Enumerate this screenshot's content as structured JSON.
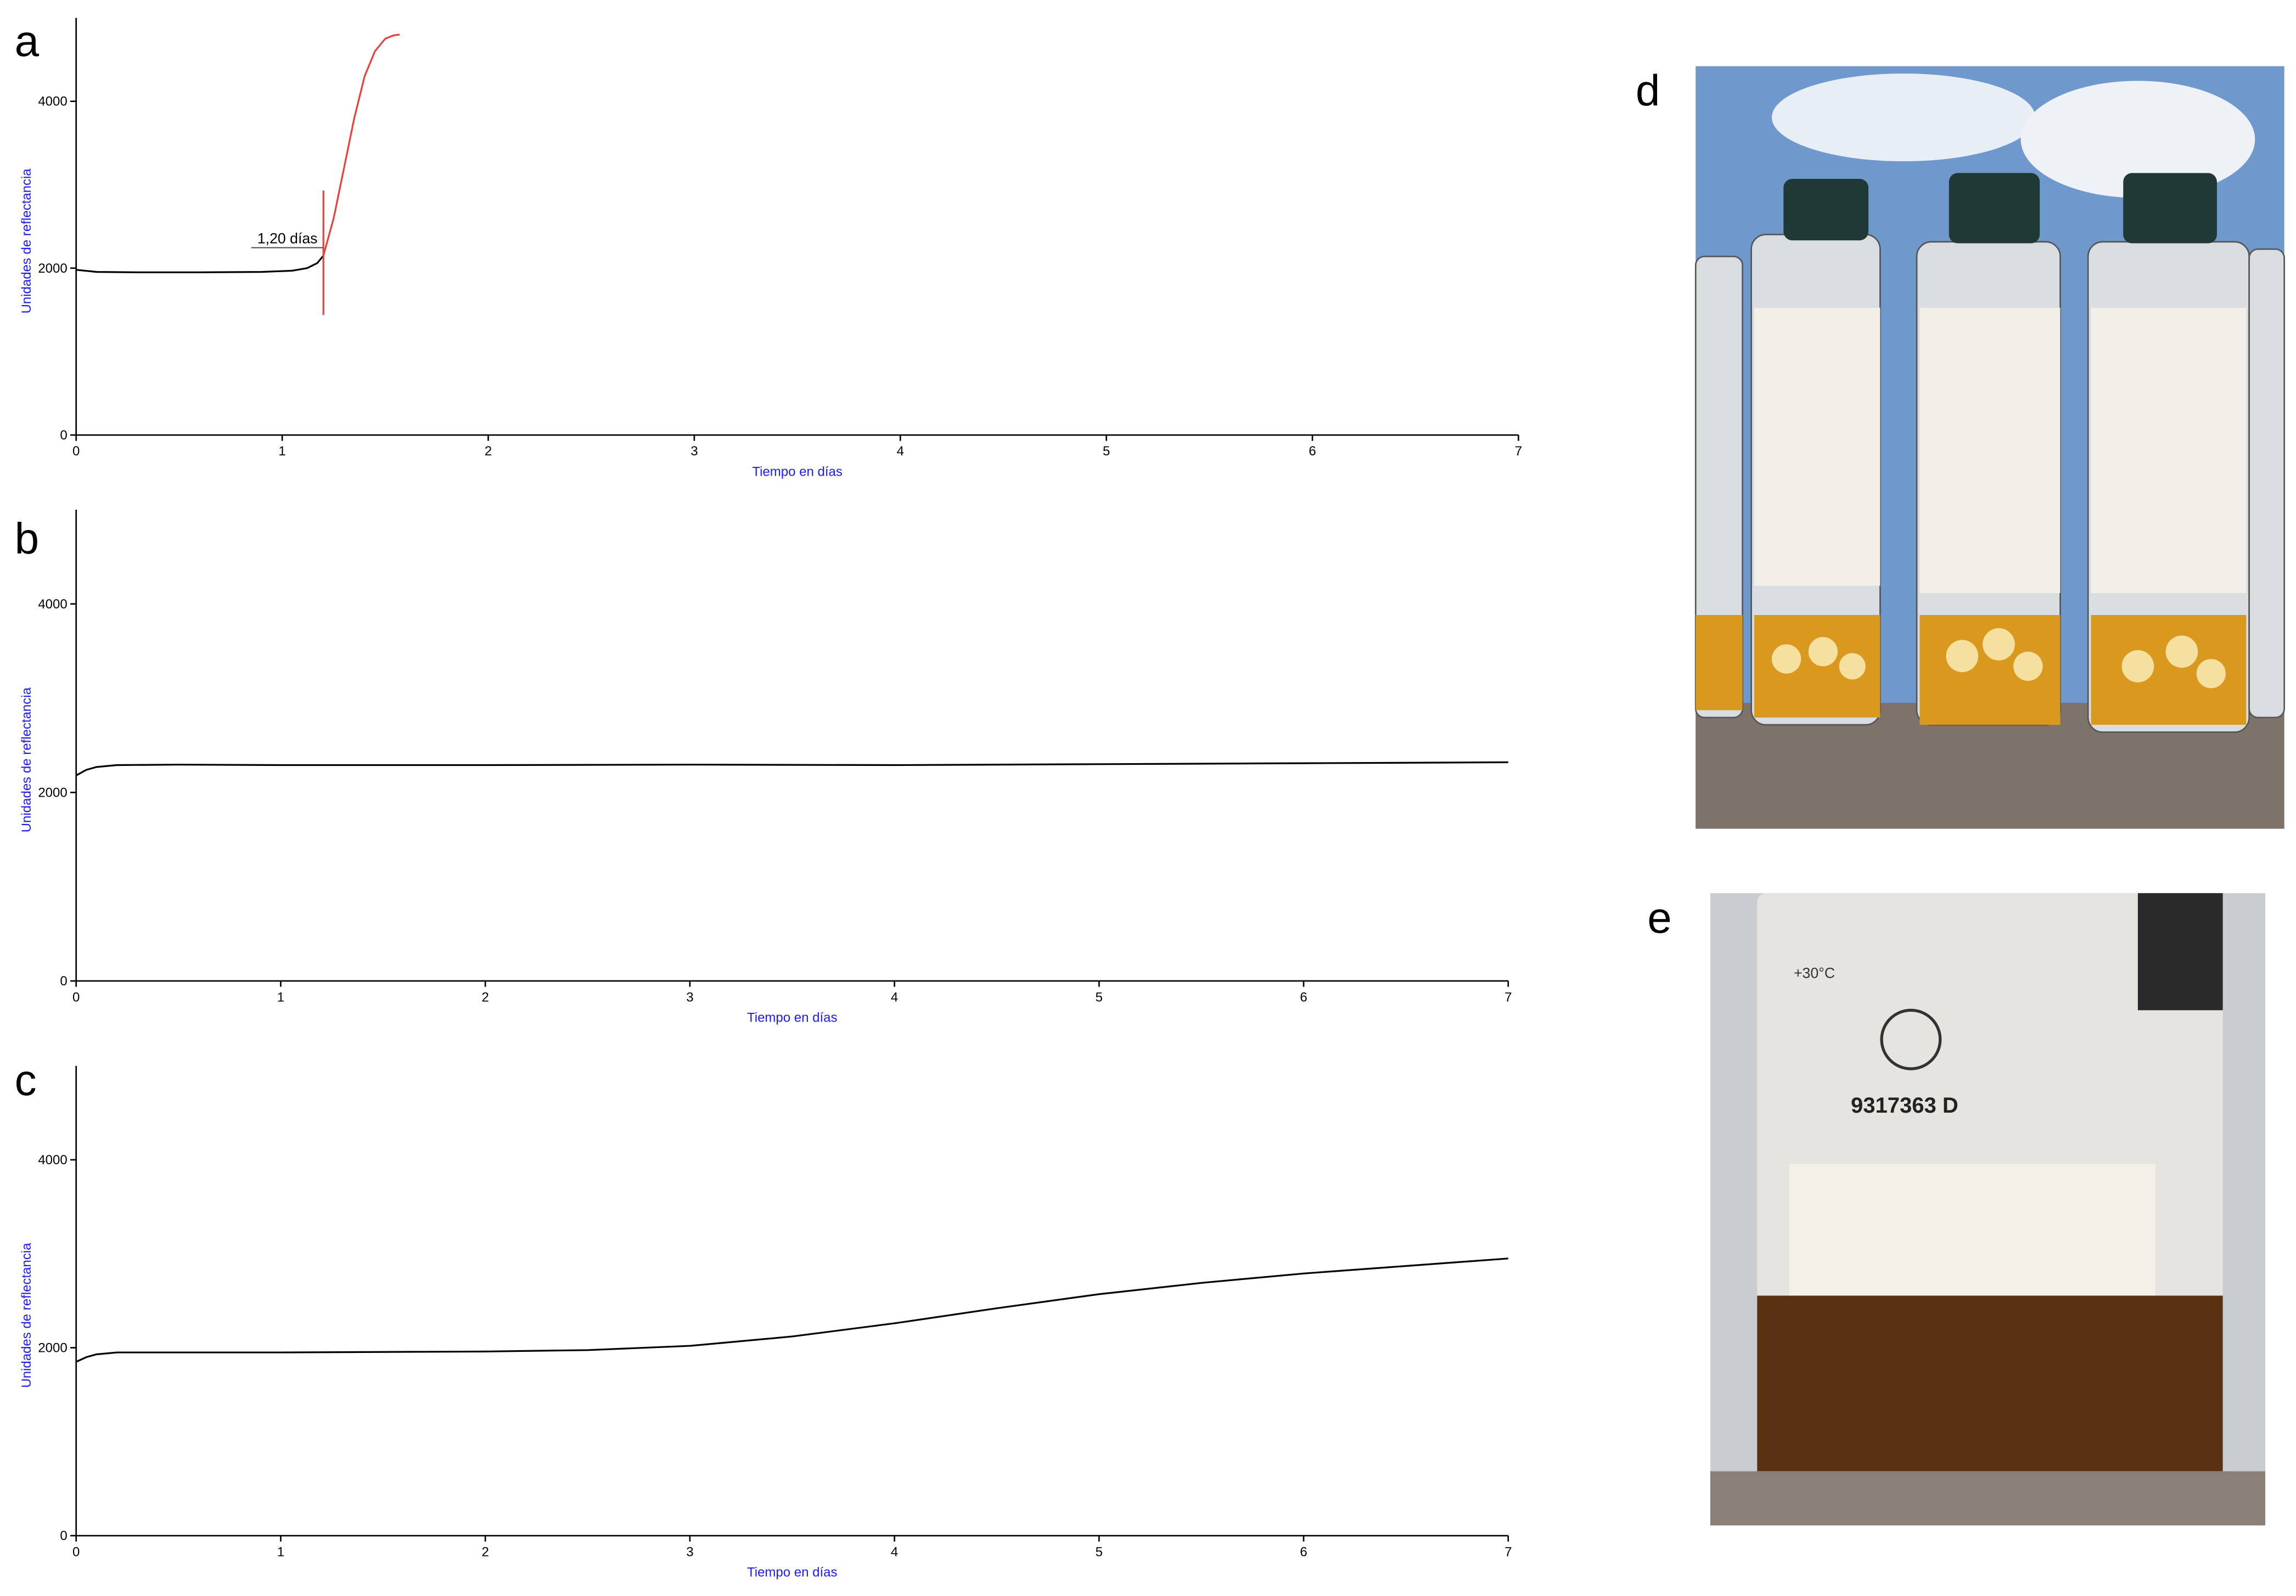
{
  "chart_data": [
    {
      "type": "line",
      "panel_label": "a",
      "x_label": "Tiempo en días",
      "y_label": "Unidades de reflectancia",
      "xlim": [
        0,
        7
      ],
      "ylim": [
        0,
        5000
      ],
      "xticks": [
        0,
        1,
        2,
        3,
        4,
        5,
        6,
        7
      ],
      "yticks": [
        0,
        2000,
        4000
      ],
      "annotation": {
        "text": "1,20 días",
        "x": 1.2,
        "color": "#e8413c"
      },
      "series": [
        {
          "color": "#000000",
          "x": [
            0,
            0.1,
            0.3,
            0.6,
            0.9,
            1.05,
            1.12,
            1.17,
            1.2
          ],
          "values": [
            1980,
            1955,
            1950,
            1950,
            1955,
            1970,
            2000,
            2060,
            2150
          ]
        },
        {
          "color": "#e8413c",
          "x": [
            1.2,
            1.25,
            1.3,
            1.35,
            1.4,
            1.45,
            1.5,
            1.54,
            1.57
          ],
          "values": [
            2150,
            2600,
            3200,
            3800,
            4300,
            4600,
            4750,
            4790,
            4800
          ]
        }
      ]
    },
    {
      "type": "line",
      "panel_label": "b",
      "x_label": "Tiempo en días",
      "y_label": "Unidades de reflectancia",
      "xlim": [
        0,
        7
      ],
      "ylim": [
        0,
        5000
      ],
      "xticks": [
        0,
        1,
        2,
        3,
        4,
        5,
        6,
        7
      ],
      "yticks": [
        0,
        2000,
        4000
      ],
      "series": [
        {
          "color": "#000000",
          "x": [
            0,
            0.05,
            0.1,
            0.2,
            0.5,
            1,
            2,
            3,
            4,
            5,
            6,
            7
          ],
          "values": [
            2180,
            2240,
            2270,
            2290,
            2295,
            2290,
            2290,
            2295,
            2290,
            2300,
            2310,
            2320
          ]
        }
      ]
    },
    {
      "type": "line",
      "panel_label": "c",
      "x_label": "Tiempo en días",
      "y_label": "Unidades de reflectancia",
      "xlim": [
        0,
        7
      ],
      "ylim": [
        0,
        5000
      ],
      "xticks": [
        0,
        1,
        2,
        3,
        4,
        5,
        6,
        7
      ],
      "yticks": [
        0,
        2000,
        4000
      ],
      "series": [
        {
          "color": "#000000",
          "x": [
            0,
            0.05,
            0.1,
            0.2,
            0.5,
            1,
            2,
            2.5,
            3,
            3.5,
            4,
            4.5,
            5,
            5.5,
            6,
            6.5,
            7
          ],
          "values": [
            1850,
            1900,
            1930,
            1950,
            1950,
            1950,
            1960,
            1975,
            2020,
            2120,
            2260,
            2420,
            2570,
            2690,
            2790,
            2870,
            2950
          ]
        }
      ]
    }
  ],
  "photos": [
    {
      "label": "d"
    },
    {
      "label": "e",
      "texts": [
        "+30°C",
        "9317363 D"
      ]
    }
  ]
}
